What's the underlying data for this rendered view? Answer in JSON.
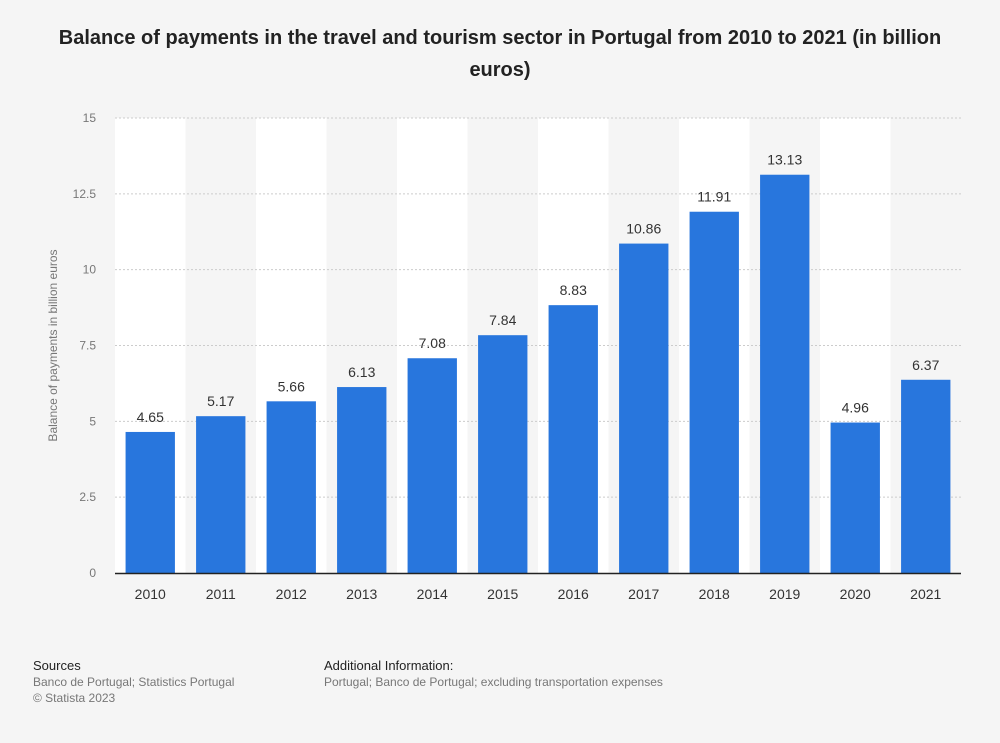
{
  "page": {
    "title": "Balance of payments in the travel and tourism sector in Portugal from 2010 to 2021 (in billion euros)"
  },
  "colors": {
    "bar": "#2876dd",
    "background": "#f5f5f5",
    "band": "#ffffff",
    "grid": "#cccccc",
    "axis": "#222222",
    "text": "#333333",
    "muted": "#777777"
  },
  "chart_data": {
    "type": "bar",
    "title": "Balance of payments in the travel and tourism sector in Portugal from 2010 to 2021 (in billion euros)",
    "xlabel": "",
    "ylabel": "Balance of payments in billion euros",
    "categories": [
      "2010",
      "2011",
      "2012",
      "2013",
      "2014",
      "2015",
      "2016",
      "2017",
      "2018",
      "2019",
      "2020",
      "2021"
    ],
    "values": [
      4.65,
      5.17,
      5.66,
      6.13,
      7.08,
      7.84,
      8.83,
      10.86,
      11.91,
      13.13,
      4.96,
      6.37
    ],
    "value_labels": [
      "4.65",
      "5.17",
      "5.66",
      "6.13",
      "7.08",
      "7.84",
      "8.83",
      "10.86",
      "11.91",
      "13.13",
      "4.96",
      "6.37"
    ],
    "ylim": [
      0,
      15
    ],
    "yticks": [
      0,
      2.5,
      5,
      7.5,
      10,
      12.5,
      15
    ],
    "ytick_labels": [
      "0",
      "2.5",
      "5",
      "7.5",
      "10",
      "12.5",
      "15"
    ],
    "grid": true,
    "legend": "none"
  },
  "footer": {
    "sources_heading": "Sources",
    "sources_line1": "Banco de Portugal; Statistics Portugal",
    "sources_line2": "© Statista 2023",
    "info_heading": "Additional Information:",
    "info_line1": "Portugal; Banco de Portugal; excluding transportation expenses"
  }
}
